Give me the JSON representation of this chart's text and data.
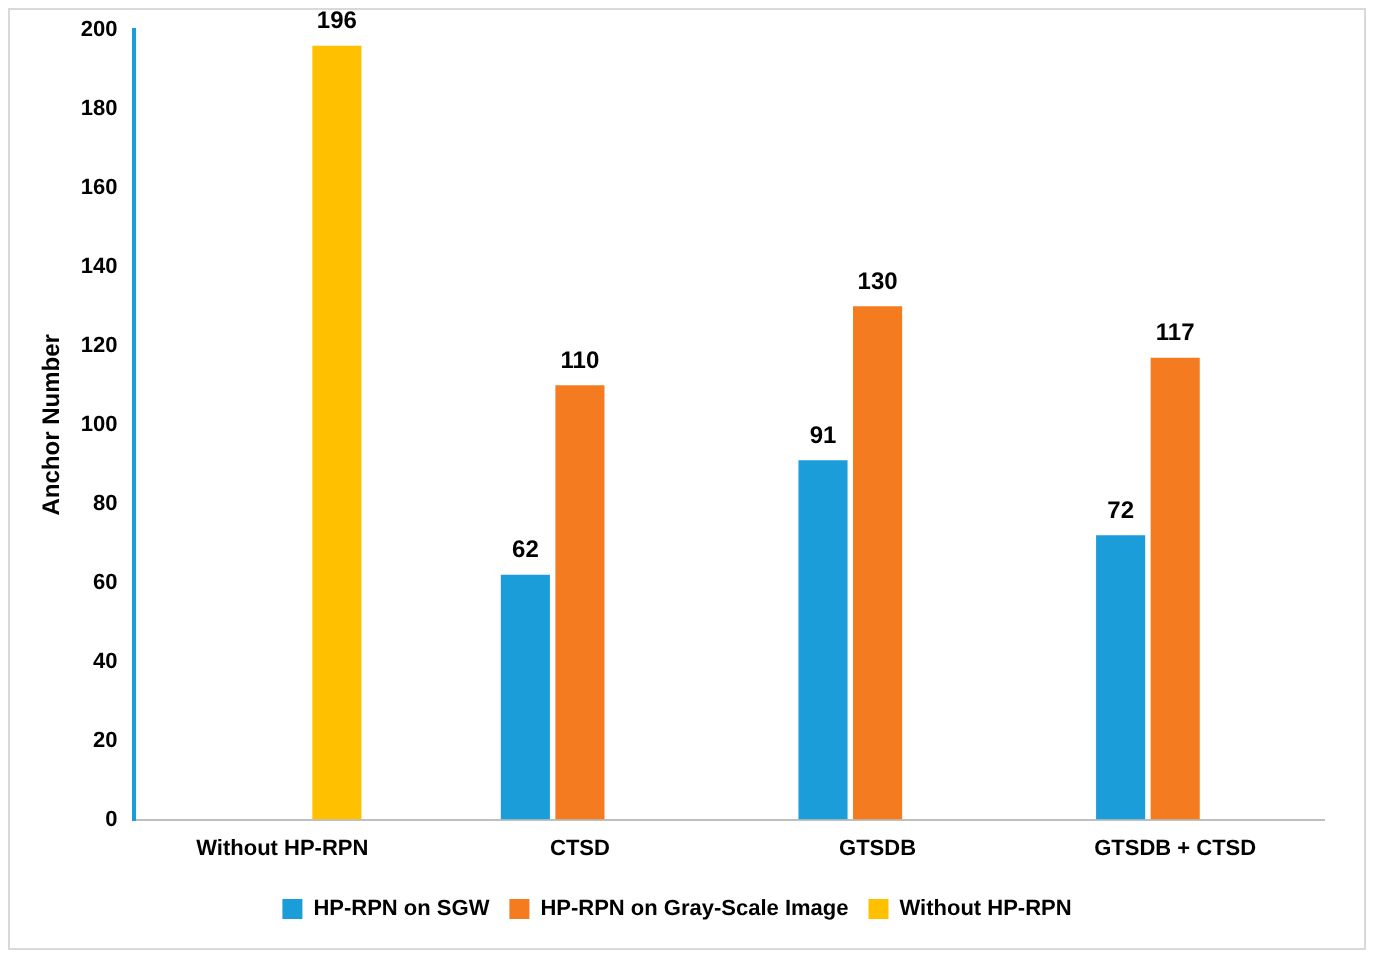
{
  "chart_data": {
    "type": "bar",
    "ylabel": "Anchor Number",
    "categories": [
      "Without HP-RPN",
      "CTSD",
      "GTSDB",
      "GTSDB + CTSD"
    ],
    "series": [
      {
        "name": "HP-RPN on SGW",
        "color": "#1b9dd9",
        "values": [
          null,
          62,
          91,
          72
        ]
      },
      {
        "name": "HP-RPN on Gray-Scale Image",
        "color": "#f47b20",
        "values": [
          null,
          110,
          130,
          117
        ]
      },
      {
        "name": "Without HP-RPN",
        "color": "#ffc000",
        "values": [
          196,
          null,
          null,
          null
        ]
      }
    ],
    "ylim": [
      0,
      200
    ],
    "yticks": [
      0,
      20,
      40,
      60,
      80,
      100,
      120,
      140,
      160,
      180,
      200
    ],
    "grid": false,
    "legend": "bottom",
    "data_labels": true
  }
}
